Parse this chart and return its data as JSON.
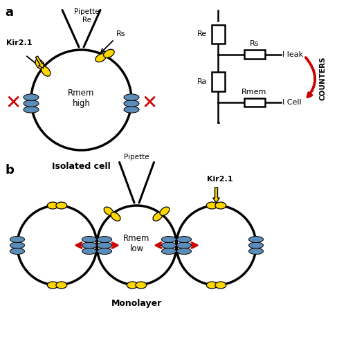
{
  "fig_width": 5.0,
  "fig_height": 4.87,
  "dpi": 100,
  "background_color": "#ffffff",
  "yellow_color": "#FFD700",
  "blue_color": "#5B8DB8",
  "red_color": "#CC0000",
  "label_a": "a",
  "label_b": "b",
  "isolated_cell_label": "Isolated cell",
  "monolayer_label": "Monolayer",
  "rmem_high": "Rmem\nhigh",
  "rmem_low": "Rmem\nlow",
  "kir21": "Kir2.1",
  "pipette_label_a": "Pipette\nRe",
  "pipette_label_b": "Pipette",
  "rs_label": "Rs",
  "re_label": "Re",
  "ra_label": "Ra",
  "rmem_label": "Rmem",
  "ileak_label": "I leak",
  "icell_label": "I Cell",
  "counters_label": "COUNTERS"
}
